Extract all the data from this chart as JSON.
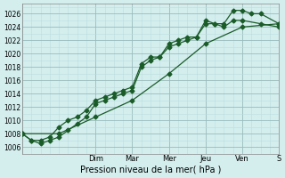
{
  "title": "",
  "xlabel": "Pression niveau de la mer( hPa )",
  "ylabel": "",
  "bg_color": "#d4eeee",
  "grid_major_color": "#99bbbb",
  "grid_minor_color": "#bbdddd",
  "line_color": "#1a5c28",
  "yticks": [
    1006,
    1008,
    1010,
    1012,
    1014,
    1016,
    1018,
    1020,
    1022,
    1024,
    1026
  ],
  "ylim": [
    1005.0,
    1027.5
  ],
  "xlim": [
    0,
    7
  ],
  "day_labels": [
    "",
    "Dim",
    "Mar",
    "Mer",
    "Jeu",
    "Ven",
    "S"
  ],
  "day_positions": [
    0,
    2,
    3,
    4,
    5,
    6,
    7
  ],
  "series1_x": [
    0.0,
    0.25,
    0.5,
    0.75,
    1.0,
    1.25,
    1.5,
    1.75,
    2.0,
    2.25,
    2.5,
    2.75,
    3.0,
    3.25,
    3.5,
    3.75,
    4.0,
    4.25,
    4.5,
    4.75,
    5.0,
    5.25,
    5.5,
    5.75,
    6.0,
    6.25,
    6.5,
    7.0
  ],
  "series1_y": [
    1008.0,
    1007.0,
    1006.5,
    1007.0,
    1007.5,
    1008.5,
    1009.5,
    1010.5,
    1012.5,
    1013.0,
    1013.5,
    1014.0,
    1014.5,
    1018.0,
    1019.0,
    1019.5,
    1021.0,
    1021.5,
    1022.0,
    1022.5,
    1025.0,
    1024.5,
    1024.5,
    1026.5,
    1026.5,
    1026.0,
    1026.0,
    1024.5
  ],
  "series2_x": [
    0.0,
    0.25,
    0.5,
    0.75,
    1.0,
    1.25,
    1.5,
    1.75,
    2.0,
    2.25,
    2.5,
    2.75,
    3.0,
    3.25,
    3.5,
    3.75,
    4.0,
    4.25,
    4.5,
    4.75,
    5.0,
    5.25,
    5.5,
    5.75,
    6.0,
    6.5,
    7.0
  ],
  "series2_y": [
    1008.0,
    1007.0,
    1007.0,
    1007.5,
    1009.0,
    1010.0,
    1010.5,
    1011.5,
    1013.0,
    1013.5,
    1014.0,
    1014.5,
    1015.0,
    1018.5,
    1019.5,
    1019.5,
    1021.5,
    1022.0,
    1022.5,
    1022.5,
    1024.5,
    1024.5,
    1024.0,
    1025.0,
    1025.0,
    1024.5,
    1024.0
  ],
  "series3_x": [
    0.0,
    1.0,
    2.0,
    3.0,
    4.0,
    5.0,
    6.0,
    7.0
  ],
  "series3_y": [
    1008.0,
    1008.0,
    1010.5,
    1013.0,
    1017.0,
    1021.5,
    1024.0,
    1024.5
  ]
}
